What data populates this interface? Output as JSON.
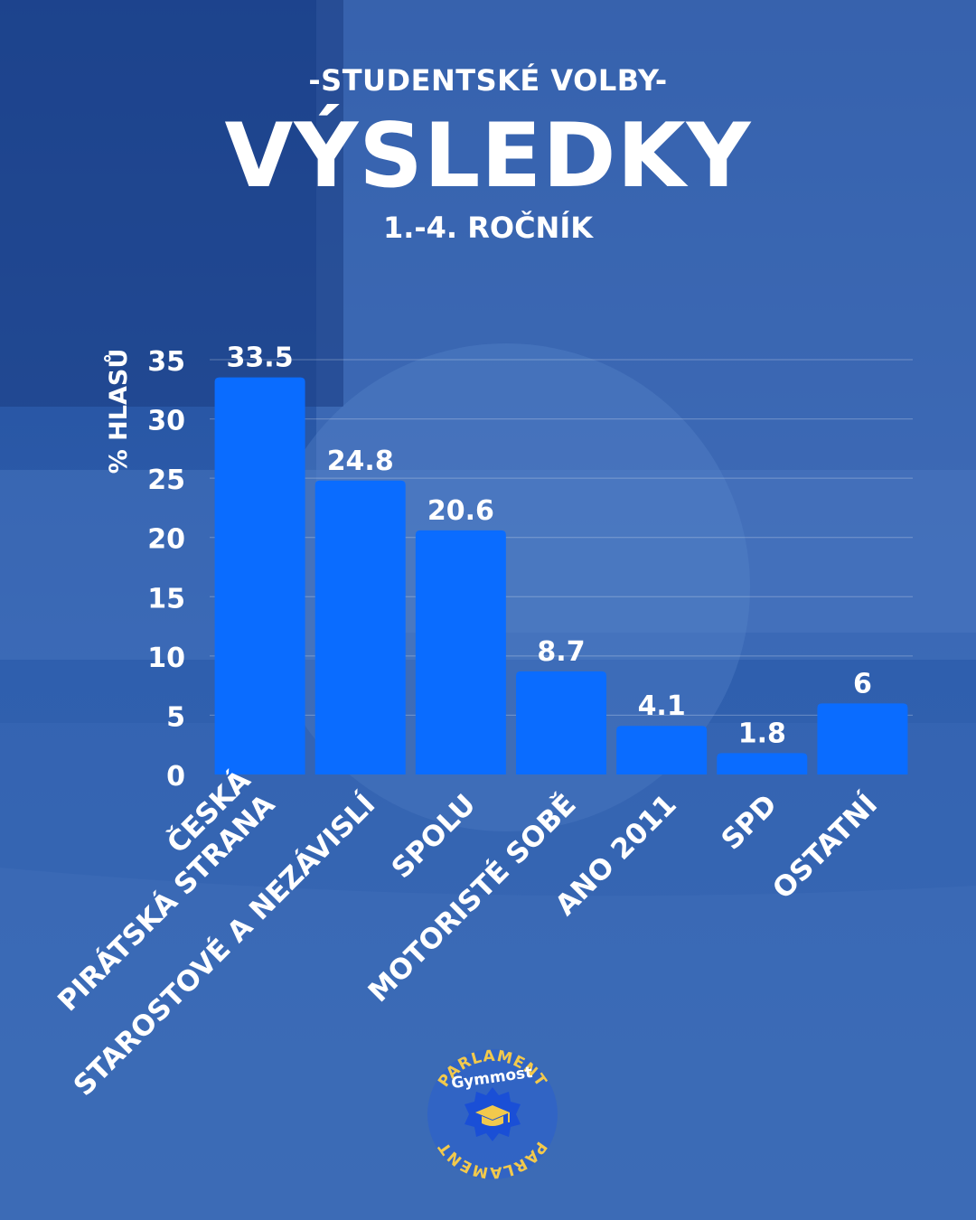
{
  "header": {
    "kicker": "-STUDENTSKÉ VOLBY-",
    "title": "VÝSLEDKY",
    "subtitle": "1.-4. ROČNÍK"
  },
  "chart_data": {
    "type": "bar",
    "ylabel": "% HLASŮ",
    "xlabel": "",
    "ylim": [
      0,
      35
    ],
    "yticks": [
      0,
      5,
      10,
      15,
      20,
      25,
      30,
      35
    ],
    "grid": true,
    "categories": [
      [
        "ČESKÁ",
        "PIRÁTSKÁ STRANA"
      ],
      [
        "STAROSTOVÉ A NEZÁVISLÍ"
      ],
      [
        "SPOLU"
      ],
      [
        "MOTORISTÉ SOBĚ"
      ],
      [
        "ANO 2011"
      ],
      [
        "SPD"
      ],
      [
        "OSTATNÍ"
      ]
    ],
    "values": [
      33.5,
      24.8,
      20.6,
      8.7,
      4.1,
      1.8,
      6
    ],
    "value_labels": [
      "33.5",
      "24.8",
      "20.6",
      "8.7",
      "4.1",
      "1.8",
      "6"
    ],
    "bar_color": "#0a6cff"
  },
  "logo": {
    "ring_text": "PARLAMENT",
    "name": "Gymmost",
    "icon": "graduation-cap-icon",
    "colors": {
      "ring": "#f2c94c",
      "badge": "#1a4fd6"
    }
  },
  "colors": {
    "background": "#2c5aa8",
    "text": "#ffffff",
    "bar": "#0a6cff"
  }
}
